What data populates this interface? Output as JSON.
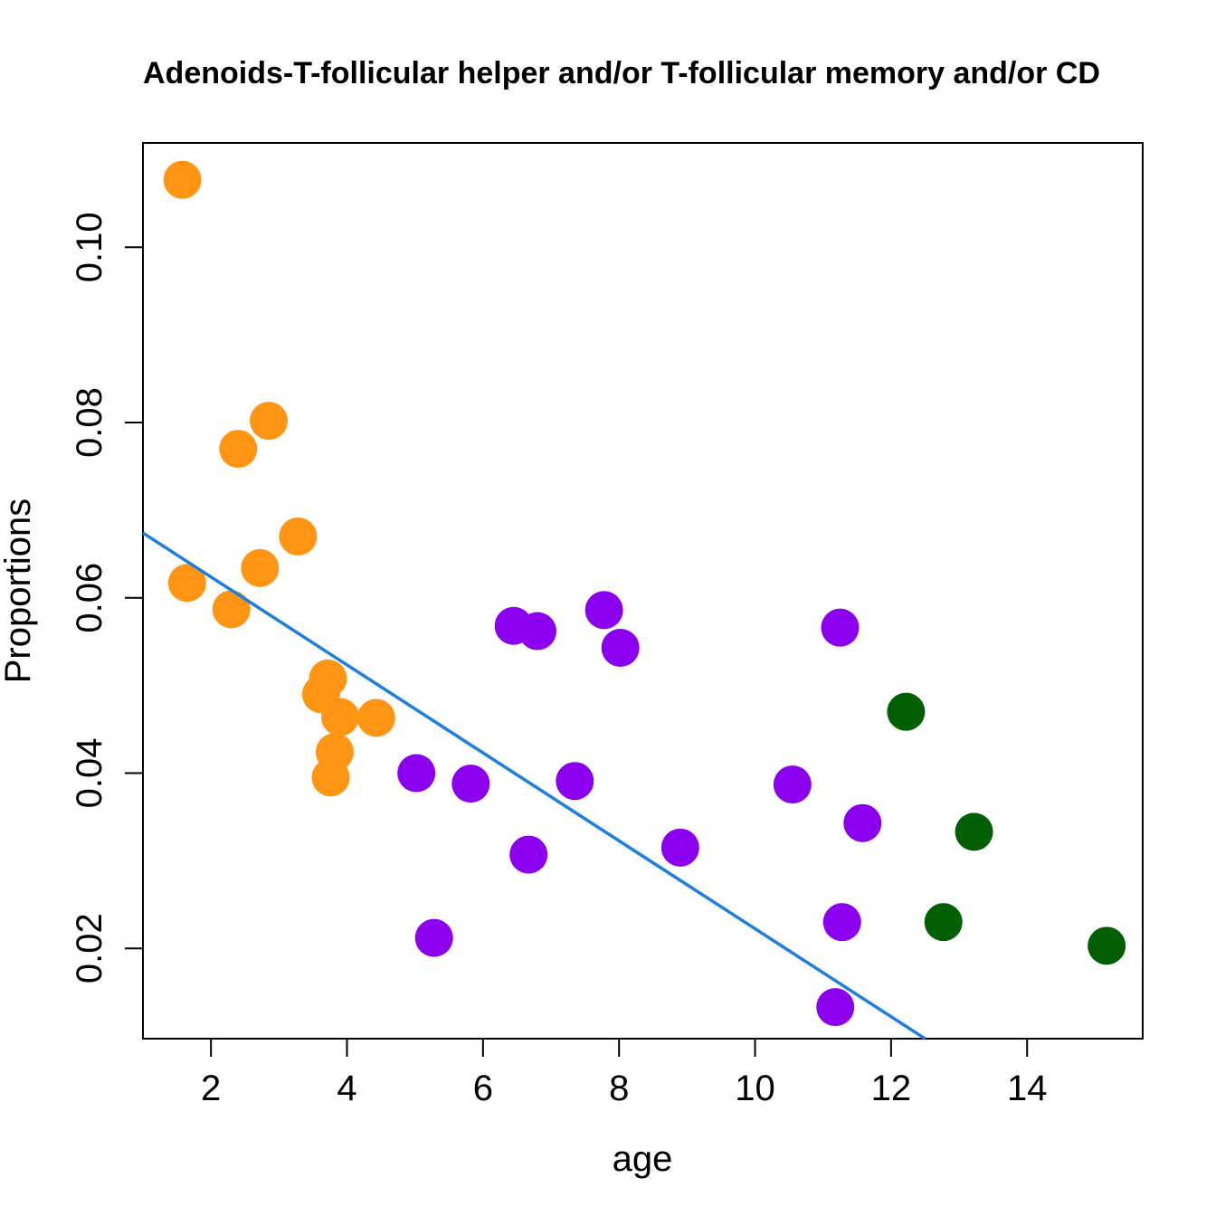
{
  "chart_data": {
    "type": "scatter",
    "title": "Adenoids-T-follicular helper and/or T-follicular memory and/or CD",
    "xlabel": "age",
    "ylabel": "Proportions",
    "xlim": [
      1.0,
      15.7
    ],
    "ylim": [
      0.0097,
      0.1119
    ],
    "x_ticks": [
      2,
      4,
      6,
      8,
      10,
      12,
      14
    ],
    "x_tick_labels": [
      "2",
      "4",
      "6",
      "8",
      "10",
      "12",
      "14"
    ],
    "y_ticks": [
      0.02,
      0.04,
      0.06,
      0.08,
      0.1
    ],
    "y_tick_labels": [
      "0.02",
      "0.04",
      "0.06",
      "0.08",
      "0.10"
    ],
    "grid": false,
    "series": [
      {
        "color": "#ff9512",
        "points": [
          {
            "x": 1.58,
            "y": 0.1077
          },
          {
            "x": 1.65,
            "y": 0.0617
          },
          {
            "x": 2.3,
            "y": 0.0587
          },
          {
            "x": 2.4,
            "y": 0.077
          },
          {
            "x": 2.72,
            "y": 0.0634
          },
          {
            "x": 2.85,
            "y": 0.0802
          },
          {
            "x": 3.28,
            "y": 0.067
          },
          {
            "x": 3.62,
            "y": 0.049
          },
          {
            "x": 3.72,
            "y": 0.0508
          },
          {
            "x": 3.9,
            "y": 0.0464
          },
          {
            "x": 3.82,
            "y": 0.0424
          },
          {
            "x": 3.76,
            "y": 0.0395
          },
          {
            "x": 4.43,
            "y": 0.0463
          }
        ]
      },
      {
        "color": "#8b00ee",
        "points": [
          {
            "x": 5.02,
            "y": 0.04
          },
          {
            "x": 5.28,
            "y": 0.0212
          },
          {
            "x": 5.82,
            "y": 0.0388
          },
          {
            "x": 6.45,
            "y": 0.0568
          },
          {
            "x": 6.8,
            "y": 0.0562
          },
          {
            "x": 6.67,
            "y": 0.0307
          },
          {
            "x": 7.35,
            "y": 0.0391
          },
          {
            "x": 7.78,
            "y": 0.0586
          },
          {
            "x": 8.02,
            "y": 0.0543
          },
          {
            "x": 8.9,
            "y": 0.0315
          },
          {
            "x": 10.55,
            "y": 0.0387
          },
          {
            "x": 11.18,
            "y": 0.0133
          },
          {
            "x": 11.25,
            "y": 0.0566
          },
          {
            "x": 11.28,
            "y": 0.023
          },
          {
            "x": 11.58,
            "y": 0.0343
          }
        ]
      },
      {
        "color": "#035f04",
        "points": [
          {
            "x": 12.22,
            "y": 0.047
          },
          {
            "x": 12.77,
            "y": 0.023
          },
          {
            "x": 13.22,
            "y": 0.0333
          },
          {
            "x": 15.17,
            "y": 0.0203
          }
        ]
      }
    ],
    "fit_line": {
      "color": "#1f7fe0",
      "x": [
        1.0,
        12.5
      ],
      "y": [
        0.0674,
        0.0097
      ]
    }
  }
}
